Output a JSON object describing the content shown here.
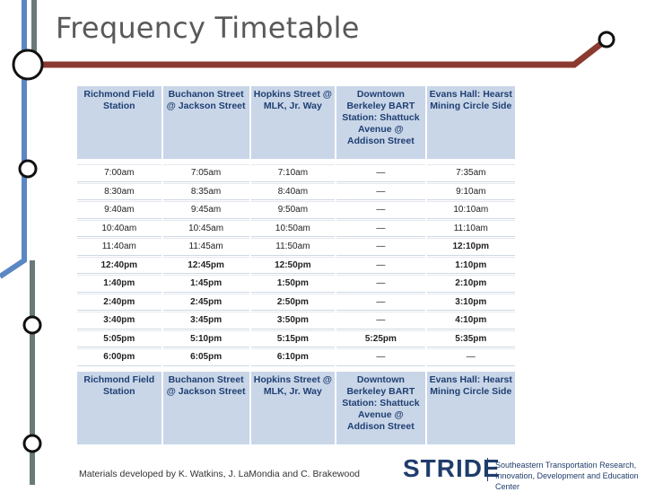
{
  "title": "Frequency Timetable",
  "table": {
    "header": [
      "Richmond Field Station",
      "Buchanon Street @ Jackson Street",
      "Hopkins Street @ MLK, Jr. Way",
      "Downtown Berkeley BART Station: Shattuck Avenue @ Addison Street",
      "Evans Hall: Hearst Mining Circle Side"
    ],
    "rows": [
      [
        "7:00am",
        "7:05am",
        "7:10am",
        "—",
        "7:35am"
      ],
      [
        "8:30am",
        "8:35am",
        "8:40am",
        "—",
        "9:10am"
      ],
      [
        "9:40am",
        "9:45am",
        "9:50am",
        "—",
        "10:10am"
      ],
      [
        "10:40am",
        "10:45am",
        "10:50am",
        "—",
        "11:10am"
      ],
      [
        "11:40am",
        "11:45am",
        "11:50am",
        "—",
        "12:10pm"
      ],
      [
        "12:40pm",
        "12:45pm",
        "12:50pm",
        "—",
        "1:10pm"
      ],
      [
        "1:40pm",
        "1:45pm",
        "1:50pm",
        "—",
        "2:10pm"
      ],
      [
        "2:40pm",
        "2:45pm",
        "2:50pm",
        "—",
        "3:10pm"
      ],
      [
        "3:40pm",
        "3:45pm",
        "3:50pm",
        "—",
        "4:10pm"
      ],
      [
        "5:05pm",
        "5:10pm",
        "5:15pm",
        "5:25pm",
        "5:35pm"
      ],
      [
        "6:00pm",
        "6:05pm",
        "6:10pm",
        "—",
        "—"
      ]
    ]
  },
  "footer": {
    "credit": "Materials developed by K. Watkins, J. LaMondia and C. Brakewood",
    "logo": "STRIDE",
    "organization": "Southeastern Transportation Research, Innovation, Development and Education Center"
  }
}
